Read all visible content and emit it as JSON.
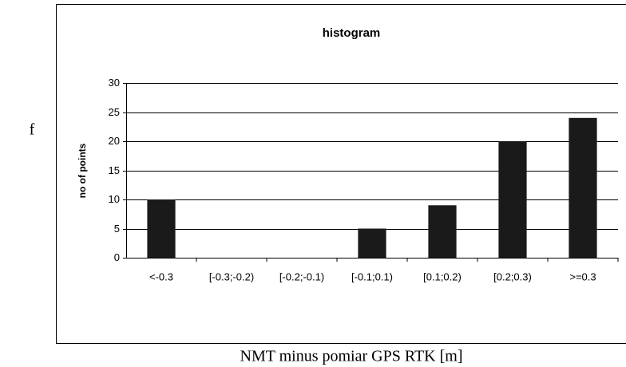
{
  "chart_data": {
    "type": "bar",
    "title": "histogram",
    "y_label": "no of points",
    "x_label": "NMT minus pomiar GPS RTK [m]",
    "annotation": "f",
    "categories": [
      "<-0.3",
      "[-0.3;-0.2)",
      "[-0.2;-0.1)",
      "[-0.1;0.1)",
      "[0.1;0.2)",
      "[0.2;0.3)",
      ">=0.3"
    ],
    "values": [
      10,
      0,
      0,
      5,
      9,
      20,
      24
    ],
    "color": "#1a1a1a",
    "ylim": [
      0,
      30
    ],
    "yticks": [
      0,
      5,
      10,
      15,
      20,
      25,
      30
    ],
    "grid": true
  }
}
